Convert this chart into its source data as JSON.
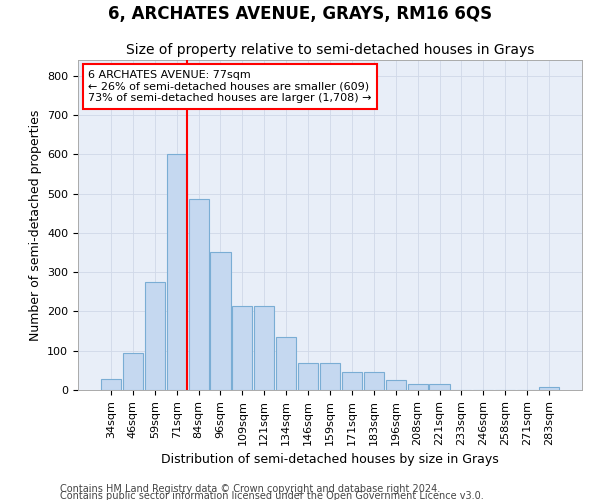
{
  "title": "6, ARCHATES AVENUE, GRAYS, RM16 6QS",
  "subtitle": "Size of property relative to semi-detached houses in Grays",
  "xlabel": "Distribution of semi-detached houses by size in Grays",
  "ylabel": "Number of semi-detached properties",
  "categories": [
    "34sqm",
    "46sqm",
    "59sqm",
    "71sqm",
    "84sqm",
    "96sqm",
    "109sqm",
    "121sqm",
    "134sqm",
    "146sqm",
    "159sqm",
    "171sqm",
    "183sqm",
    "196sqm",
    "208sqm",
    "221sqm",
    "233sqm",
    "246sqm",
    "258sqm",
    "271sqm",
    "283sqm"
  ],
  "values": [
    28,
    95,
    275,
    600,
    485,
    350,
    215,
    215,
    135,
    70,
    70,
    45,
    45,
    25,
    15,
    15,
    0,
    0,
    0,
    0,
    8
  ],
  "bar_color": "#c5d8f0",
  "bar_edge_color": "#7aadd4",
  "property_label": "6 ARCHATES AVENUE: 77sqm",
  "pct_smaller": 26,
  "n_smaller": 609,
  "pct_larger": 73,
  "n_larger": 1708,
  "vline_color": "red",
  "grid_color": "#d0d8e8",
  "bg_color": "#e8eef8",
  "fig_bg": "#ffffff",
  "footer1": "Contains HM Land Registry data © Crown copyright and database right 2024.",
  "footer2": "Contains public sector information licensed under the Open Government Licence v3.0.",
  "ylim": [
    0,
    840
  ],
  "title_fontsize": 12,
  "subtitle_fontsize": 10,
  "axis_label_fontsize": 9,
  "tick_fontsize": 8,
  "footer_fontsize": 7
}
